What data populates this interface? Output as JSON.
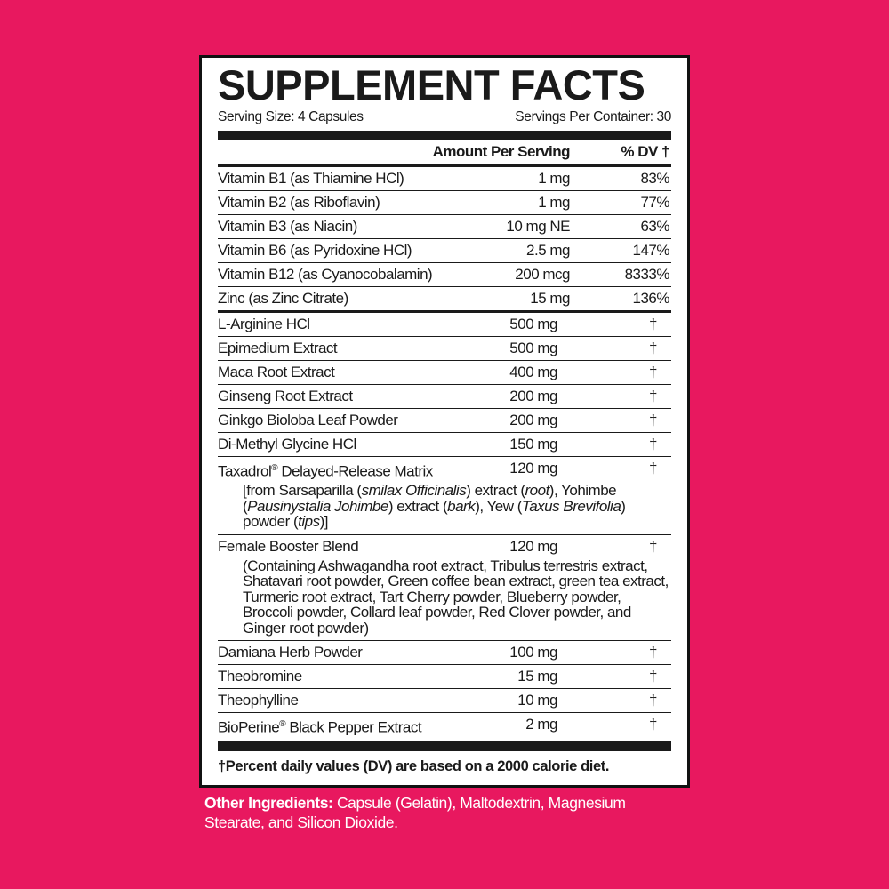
{
  "background_color": "#E8185F",
  "title": "SUPPLEMENT FACTS",
  "serving_size": "Serving Size: 4 Capsules",
  "servings_per_container": "Servings Per Container: 30",
  "header": {
    "amount": "Amount Per Serving",
    "dv": "% DV †"
  },
  "vitamins": [
    {
      "name": "Vitamin B1 (as Thiamine HCl)",
      "amount": "1 mg",
      "dv": "83%"
    },
    {
      "name": "Vitamin B2 (as Riboflavin)",
      "amount": "1 mg",
      "dv": "77%"
    },
    {
      "name": "Vitamin B3 (as Niacin)",
      "amount": "10 mg NE",
      "dv": "63%"
    },
    {
      "name": "Vitamin B6 (as Pyridoxine HCl)",
      "amount": "2.5 mg",
      "dv": "147%"
    },
    {
      "name": "Vitamin B12 (as Cyanocobalamin)",
      "amount": "200 mcg",
      "dv": "8333%"
    },
    {
      "name": "Zinc (as Zinc Citrate)",
      "amount": "15 mg",
      "dv": "136%"
    }
  ],
  "others": [
    {
      "name": "L-Arginine HCl",
      "amount": "500 mg",
      "dv": "†"
    },
    {
      "name": "Epimedium Extract",
      "amount": "500 mg",
      "dv": "†"
    },
    {
      "name": "Maca Root Extract",
      "amount": "400 mg",
      "dv": "†"
    },
    {
      "name": "Ginseng Root Extract",
      "amount": "200 mg",
      "dv": "†"
    },
    {
      "name": "Ginkgo Bioloba Leaf Powder",
      "amount": "200 mg",
      "dv": "†"
    },
    {
      "name": "Di-Methyl Glycine HCl",
      "amount": "150 mg",
      "dv": "†"
    }
  ],
  "taxadrol": {
    "name": "Taxadrol",
    "reg": "®",
    "name_rest": " Delayed-Release Matrix",
    "amount": "120 mg",
    "dv": "†",
    "desc": [
      {
        "t": "[from Sarsaparilla ("
      },
      {
        "t": "smilax Officinalis",
        "i": true
      },
      {
        "t": ") extract ("
      },
      {
        "t": "root",
        "i": true
      },
      {
        "t": "), Yohimbe ("
      },
      {
        "t": "Pausinystalia Johimbe",
        "i": true
      },
      {
        "t": ") extract ("
      },
      {
        "t": "bark",
        "i": true
      },
      {
        "t": "), Yew ("
      },
      {
        "t": "Taxus Brevifolia",
        "i": true
      },
      {
        "t": ") powder ("
      },
      {
        "t": "tips",
        "i": true
      },
      {
        "t": ")]"
      }
    ]
  },
  "blend": {
    "name": "Female Booster Blend",
    "amount": "120 mg",
    "dv": "†",
    "desc": "(Containing Ashwagandha root extract, Tribulus terrestris extract, Shatavari root powder, Green coffee bean extract, green tea extract, Turmeric root extract, Tart Cherry powder, Blueberry powder, Broccoli powder, Collard leaf powder, Red Clover powder, and Ginger root powder)"
  },
  "tail": [
    {
      "name": "Damiana Herb Powder",
      "amount": "100 mg",
      "dv": "†"
    },
    {
      "name": "Theobromine",
      "amount": "15 mg",
      "dv": "†"
    },
    {
      "name": "Theophylline",
      "amount": "10 mg",
      "dv": "†"
    }
  ],
  "bioperine": {
    "name": "BioPerine",
    "reg": "®",
    "name_rest": " Black Pepper Extract",
    "amount": "2 mg",
    "dv": "†"
  },
  "footnote": "†Percent daily values (DV) are based on a 2000 calorie diet.",
  "other_ingredients": {
    "label": "Other Ingredients:",
    "text": " Capsule (Gelatin), Maltodextrin, Magnesium Stearate, and Silicon Dioxide."
  }
}
